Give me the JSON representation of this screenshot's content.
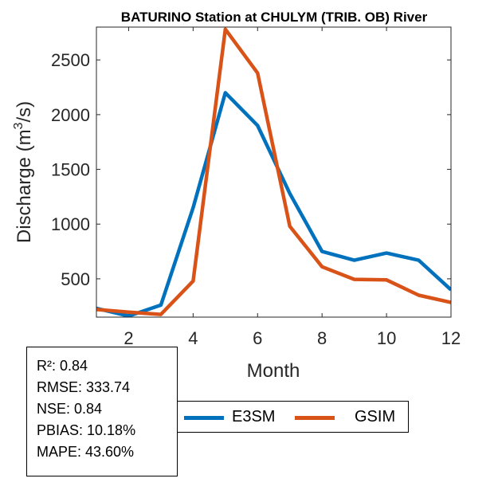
{
  "chart_data": {
    "type": "line",
    "title": "BATURINO  Station at  CHULYM (TRIB. OB)  River",
    "xlabel": "Month",
    "ylabel_main": "Discharge (m",
    "ylabel_sup": "3",
    "ylabel_tail": "/s)",
    "x": [
      1,
      2,
      3,
      4,
      5,
      6,
      7,
      8,
      9,
      10,
      11,
      12
    ],
    "xlim": [
      1,
      12
    ],
    "ylim": [
      150,
      2800
    ],
    "xticks": [
      2,
      4,
      6,
      8,
      10,
      12
    ],
    "yticks": [
      500,
      1000,
      1500,
      2000,
      2500
    ],
    "series": [
      {
        "name": "E3SM",
        "color": "#0072BD",
        "values": [
          230,
          160,
          260,
          1150,
          2200,
          1900,
          1280,
          750,
          670,
          735,
          670,
          400
        ]
      },
      {
        "name": "GSIM",
        "color": "#D95319",
        "values": [
          220,
          195,
          175,
          480,
          2780,
          2380,
          980,
          610,
          495,
          490,
          350,
          285
        ]
      }
    ]
  },
  "stats": {
    "r2": "R²: 0.84",
    "rmse": "RMSE: 333.74",
    "nse": "NSE: 0.84",
    "pbias": "PBIAS: 10.18%",
    "mape": "MAPE: 43.60%"
  },
  "legend": {
    "e3sm": "E3SM",
    "gsim": "GSIM"
  }
}
